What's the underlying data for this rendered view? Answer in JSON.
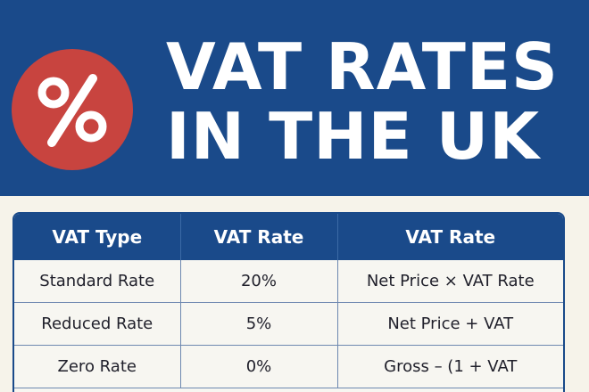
{
  "header": {
    "badge_symbol": "%",
    "title_line1": "VAT RATES",
    "title_line2": "IN THE UK",
    "colors": {
      "banner": "#1a4a8a",
      "badge": "#c8443f",
      "text": "#ffffff"
    }
  },
  "table": {
    "columns": [
      "VAT Type",
      "VAT Rate",
      "VAT Rate"
    ],
    "rows": [
      [
        "Standard Rate",
        "20%",
        "Net Price × VAT Rate"
      ],
      [
        "Reduced Rate",
        "5%",
        "Net Price + VAT"
      ],
      [
        "Zero Rate",
        "0%",
        "Gross – (1 + VAT"
      ]
    ]
  }
}
